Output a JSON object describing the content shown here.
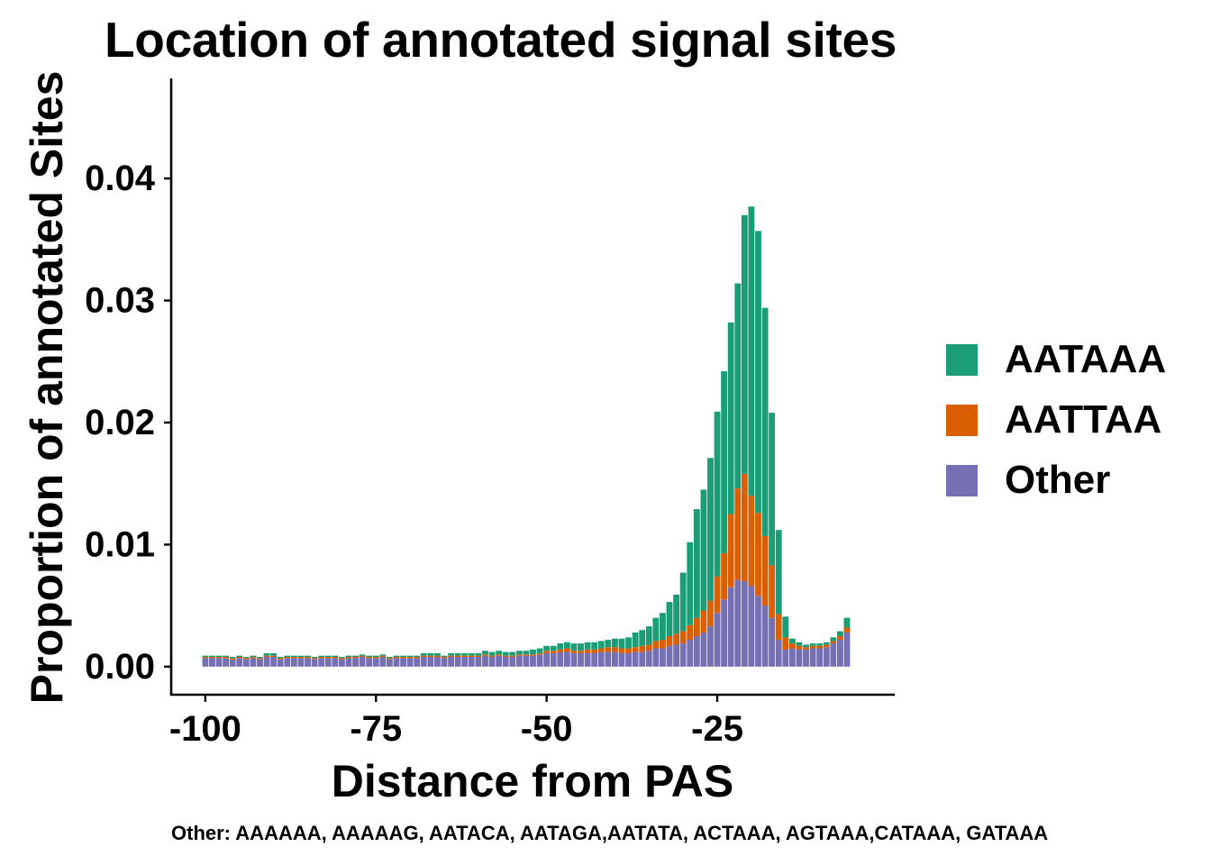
{
  "chart_data": {
    "type": "bar",
    "stacked": true,
    "title": "Location of annotated signal sites",
    "xlabel": "Distance from PAS",
    "ylabel": "Proportion of annotated Sites",
    "xlim": [
      -105,
      1
    ],
    "ylim": [
      -0.0023,
      0.0482
    ],
    "xticks": [
      -100,
      -75,
      -50,
      -25
    ],
    "yticks": [
      0.0,
      0.01,
      0.02,
      0.03,
      0.04
    ],
    "ytick_labels": [
      "0.00",
      "0.01",
      "0.02",
      "0.03",
      "0.04"
    ],
    "xtick_labels": [
      "-100",
      "-75",
      "-50",
      "-25"
    ],
    "grid": false,
    "legend_position": "right",
    "caption": "Other: AAAAAA, AAAAAG, AATACA, AATAGA,AATATA, ACTAAA, AGTAAA,CATAAA, GATAAA",
    "x": [
      -100,
      -99,
      -98,
      -97,
      -96,
      -95,
      -94,
      -93,
      -92,
      -91,
      -90,
      -89,
      -88,
      -87,
      -86,
      -85,
      -84,
      -83,
      -82,
      -81,
      -80,
      -79,
      -78,
      -77,
      -76,
      -75,
      -74,
      -73,
      -72,
      -71,
      -70,
      -69,
      -68,
      -67,
      -66,
      -65,
      -64,
      -63,
      -62,
      -61,
      -60,
      -59,
      -58,
      -57,
      -56,
      -55,
      -54,
      -53,
      -52,
      -51,
      -50,
      -49,
      -48,
      -47,
      -46,
      -45,
      -44,
      -43,
      -42,
      -41,
      -40,
      -39,
      -38,
      -37,
      -36,
      -35,
      -34,
      -33,
      -32,
      -31,
      -30,
      -29,
      -28,
      -27,
      -26,
      -25,
      -24,
      -23,
      -22,
      -21,
      -20,
      -19,
      -18,
      -17,
      -16,
      -15,
      -14,
      -13,
      -12,
      -11,
      -10,
      -9,
      -8,
      -7,
      -6
    ],
    "series": [
      {
        "name": "Other",
        "color": "#7570b3",
        "values": [
          0.0007,
          0.0007,
          0.0007,
          0.0007,
          0.0006,
          0.0007,
          0.0006,
          0.0007,
          0.0006,
          0.0008,
          0.0008,
          0.0006,
          0.0007,
          0.0007,
          0.0007,
          0.0007,
          0.0006,
          0.0007,
          0.0007,
          0.0007,
          0.0006,
          0.0007,
          0.0007,
          0.0008,
          0.0007,
          0.0007,
          0.0008,
          0.0006,
          0.0007,
          0.0007,
          0.0007,
          0.0007,
          0.0008,
          0.0008,
          0.0008,
          0.0007,
          0.0008,
          0.0008,
          0.0008,
          0.0008,
          0.0008,
          0.0009,
          0.0008,
          0.0009,
          0.0008,
          0.0008,
          0.0009,
          0.0009,
          0.0009,
          0.001,
          0.0011,
          0.0011,
          0.0012,
          0.0012,
          0.0011,
          0.0011,
          0.0011,
          0.0011,
          0.0012,
          0.0012,
          0.0012,
          0.0011,
          0.0011,
          0.0012,
          0.0012,
          0.0013,
          0.0015,
          0.0015,
          0.0017,
          0.0018,
          0.0019,
          0.0022,
          0.0025,
          0.0028,
          0.0033,
          0.0044,
          0.0055,
          0.0065,
          0.0071,
          0.007,
          0.0066,
          0.0058,
          0.005,
          0.004,
          0.0022,
          0.0014,
          0.0015,
          0.0014,
          0.0014,
          0.0015,
          0.0015,
          0.0016,
          0.0019,
          0.0022,
          0.0028
        ]
      },
      {
        "name": "AATTAA",
        "color": "#d95f02",
        "values": [
          0.0001,
          0.0001,
          0.0001,
          0.0001,
          0.0001,
          0.0001,
          0.0001,
          0.0001,
          0.0001,
          0.0001,
          0.0001,
          0.0001,
          0.0001,
          0.0001,
          0.0001,
          0.0001,
          0.0001,
          0.0001,
          0.0001,
          0.0001,
          0.0001,
          0.0001,
          0.0001,
          0.0001,
          0.0001,
          0.0001,
          0.0001,
          0.0001,
          0.0001,
          0.0001,
          0.0001,
          0.0001,
          0.0001,
          0.0001,
          0.0001,
          0.0001,
          0.0001,
          0.0001,
          0.0001,
          0.0001,
          0.0001,
          0.0001,
          0.0001,
          0.0001,
          0.0001,
          0.0001,
          0.0001,
          0.0001,
          0.0001,
          0.0001,
          0.0002,
          0.0002,
          0.0002,
          0.0003,
          0.0002,
          0.0002,
          0.0003,
          0.0003,
          0.0003,
          0.0004,
          0.0004,
          0.0004,
          0.0004,
          0.0004,
          0.0005,
          0.0005,
          0.0006,
          0.0007,
          0.0008,
          0.0009,
          0.001,
          0.0012,
          0.0015,
          0.0018,
          0.0021,
          0.003,
          0.0038,
          0.006,
          0.0075,
          0.0088,
          0.0074,
          0.0068,
          0.0057,
          0.0043,
          0.0021,
          0.001,
          0.0004,
          0.0003,
          0.0002,
          0.0002,
          0.0002,
          0.0002,
          0.0002,
          0.0003,
          0.0004
        ]
      },
      {
        "name": "AATAAA",
        "color": "#1b9e77",
        "values": [
          0.0001,
          0.0001,
          0.0001,
          0.0001,
          0.0001,
          0.0001,
          0.0001,
          0.0001,
          0.0001,
          0.0002,
          0.0002,
          0.0001,
          0.0001,
          0.0001,
          0.0001,
          0.0001,
          0.0001,
          0.0001,
          0.0001,
          0.0001,
          0.0001,
          0.0001,
          0.0001,
          0.0001,
          0.0001,
          0.0001,
          0.0001,
          0.0001,
          0.0001,
          0.0001,
          0.0001,
          0.0001,
          0.0002,
          0.0002,
          0.0002,
          0.0001,
          0.0002,
          0.0002,
          0.0002,
          0.0002,
          0.0002,
          0.0003,
          0.0003,
          0.0003,
          0.0003,
          0.0003,
          0.0003,
          0.0003,
          0.0004,
          0.0004,
          0.0004,
          0.0004,
          0.0005,
          0.0005,
          0.0006,
          0.0006,
          0.0006,
          0.0006,
          0.0006,
          0.0006,
          0.0007,
          0.0008,
          0.0009,
          0.0012,
          0.0013,
          0.0015,
          0.0019,
          0.0022,
          0.0028,
          0.0032,
          0.0048,
          0.0068,
          0.0089,
          0.0099,
          0.0117,
          0.0135,
          0.0149,
          0.0157,
          0.0168,
          0.0212,
          0.0237,
          0.0231,
          0.0187,
          0.0125,
          0.0069,
          0.0017,
          0.0004,
          0.0003,
          0.0002,
          0.0002,
          0.0002,
          0.0002,
          0.0003,
          0.0004,
          0.0008
        ]
      }
    ],
    "legend_order": [
      "AATAAA",
      "AATTAA",
      "Other"
    ]
  }
}
